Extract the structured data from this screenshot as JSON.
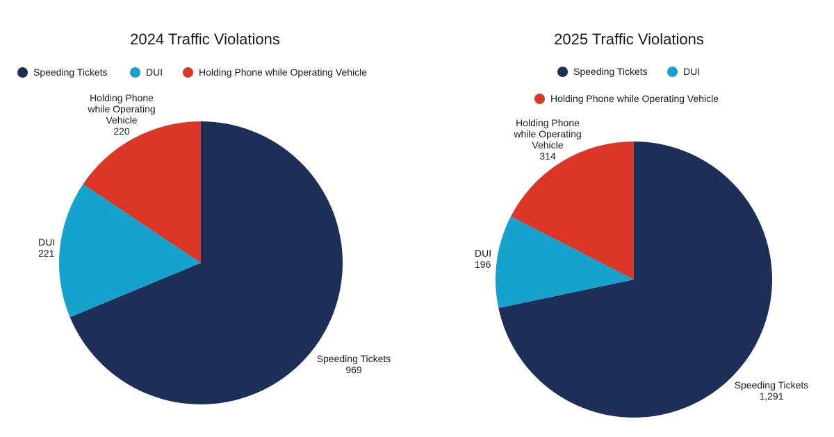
{
  "colors": {
    "speeding": "#1d2f59",
    "dui": "#15a2cc",
    "phone": "#dc3628"
  },
  "chart_data": [
    {
      "type": "pie",
      "title": "2024 Traffic Violations",
      "categories": [
        "Speeding Tickets",
        "DUI",
        "Holding Phone while Operating Vehicle"
      ],
      "values": [
        969,
        221,
        220
      ],
      "value_labels": [
        "969",
        "221",
        "220"
      ],
      "slice_labels": [
        [
          "Speeding Tickets"
        ],
        [
          "DUI"
        ],
        [
          "Holding Phone",
          "while Operating",
          "Vehicle"
        ]
      ],
      "legend": "top"
    },
    {
      "type": "pie",
      "title": "2025 Traffic Violations",
      "categories": [
        "Speeding Tickets",
        "DUI",
        "Holding Phone while Operating Vehicle"
      ],
      "values": [
        1291,
        196,
        314
      ],
      "value_labels": [
        "1,291",
        "196",
        "314"
      ],
      "slice_labels": [
        [
          "Speeding Tickets"
        ],
        [
          "DUI"
        ],
        [
          "Holding Phone",
          "while Operating",
          "Vehicle"
        ]
      ],
      "legend": "top"
    }
  ]
}
